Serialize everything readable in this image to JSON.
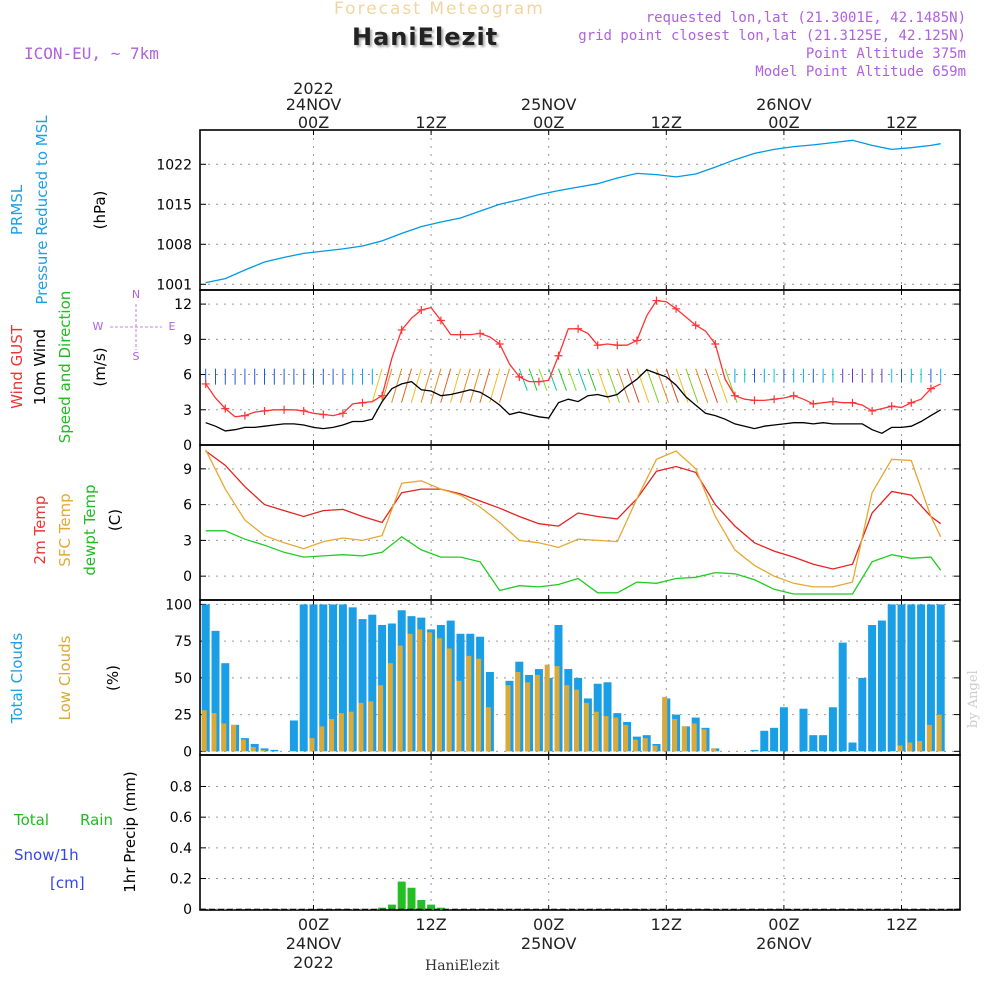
{
  "header": {
    "product": "Forecast Meteogram",
    "station": "HaniElezit",
    "model": "ICON-EU, ~ 7km",
    "requested": "requested lon,lat (21.3001E, 42.1485N)",
    "gridpoint": "grid point closest lon,lat (21.3125E, 42.125N)",
    "point_altitude": "Point Altitude 375m",
    "model_altitude": "Model Point Altitude 659m"
  },
  "footer": {
    "station": "HaniElezit",
    "watermark": "by Angel"
  },
  "time_axis": {
    "top_year": "2022",
    "labels": [
      {
        "h": 0,
        "lines": [
          "24NOV",
          "00Z"
        ]
      },
      {
        "h": 12,
        "lines": [
          "12Z"
        ]
      },
      {
        "h": 24,
        "lines": [
          "25NOV",
          "00Z"
        ]
      },
      {
        "h": 36,
        "lines": [
          "12Z"
        ]
      },
      {
        "h": 48,
        "lines": [
          "26NOV",
          "00Z"
        ]
      },
      {
        "h": 60,
        "lines": [
          "12Z"
        ]
      }
    ],
    "bottom_labels": [
      {
        "h": 0,
        "lines": [
          "00Z",
          "24NOV",
          "2022"
        ]
      },
      {
        "h": 12,
        "lines": [
          "12Z"
        ]
      },
      {
        "h": 24,
        "lines": [
          "00Z",
          "25NOV"
        ]
      },
      {
        "h": 36,
        "lines": [
          "12Z"
        ]
      },
      {
        "h": 48,
        "lines": [
          "00Z",
          "26NOV"
        ]
      },
      {
        "h": 60,
        "lines": [
          "12Z"
        ]
      }
    ]
  },
  "chart_data": [
    {
      "type": "line",
      "panel": "pressure",
      "labels": [
        "PRMSL",
        "Pressure Reduced to MSL",
        "(hPa)"
      ],
      "ylim": [
        1000,
        1028
      ],
      "yticks": [
        1001,
        1008,
        1015,
        1022
      ],
      "grid": true,
      "x": [
        -11,
        -9,
        -7,
        -5,
        -3,
        -1,
        1,
        3,
        5,
        7,
        9,
        11,
        13,
        15,
        17,
        19,
        21,
        23,
        25,
        27,
        29,
        31,
        33,
        35,
        37,
        39,
        41,
        43,
        45,
        47,
        49,
        51,
        53,
        55,
        57,
        59,
        61,
        63,
        64
      ],
      "series": [
        {
          "color": "#0099e6",
          "values": [
            1001.3,
            1002.0,
            1003.5,
            1004.9,
            1005.7,
            1006.4,
            1006.8,
            1007.2,
            1007.7,
            1008.6,
            1009.9,
            1011.1,
            1011.9,
            1012.6,
            1013.8,
            1015.0,
            1015.8,
            1016.7,
            1017.4,
            1018.0,
            1018.6,
            1019.6,
            1020.4,
            1020.2,
            1019.8,
            1020.3,
            1021.5,
            1022.8,
            1023.9,
            1024.6,
            1025.1,
            1025.4,
            1025.8,
            1026.2,
            1025.3,
            1024.6,
            1024.9,
            1025.3,
            1025.6
          ]
        }
      ]
    },
    {
      "type": "line",
      "panel": "wind",
      "labels": [
        "Wind GUST",
        "10m Wind",
        "Speed and Direction",
        "(m/s)"
      ],
      "compass": [
        "N",
        "E",
        "S",
        "W"
      ],
      "ylim": [
        0,
        13.2
      ],
      "yticks": [
        0,
        3,
        6,
        9,
        12
      ],
      "grid": true,
      "x": [
        -11,
        -10,
        -9,
        -8,
        -7,
        -6,
        -5,
        -4,
        -3,
        -2,
        -1,
        0,
        1,
        2,
        3,
        4,
        5,
        6,
        7,
        8,
        9,
        10,
        11,
        12,
        13,
        14,
        15,
        16,
        17,
        18,
        19,
        20,
        21,
        22,
        23,
        24,
        25,
        26,
        27,
        28,
        29,
        30,
        31,
        32,
        33,
        34,
        35,
        36,
        37,
        38,
        39,
        40,
        41,
        42,
        43,
        44,
        45,
        46,
        47,
        48,
        49,
        50,
        51,
        52,
        53,
        54,
        55,
        56,
        57,
        58,
        59,
        60,
        61,
        62,
        63,
        64
      ],
      "series": [
        {
          "name": "Wind GUST",
          "color": "#ff3333",
          "values": [
            5.2,
            4.0,
            3.1,
            2.4,
            2.5,
            2.8,
            2.9,
            3.0,
            3.0,
            3.0,
            2.9,
            2.7,
            2.6,
            2.5,
            2.7,
            3.5,
            3.6,
            3.7,
            4.2,
            7.4,
            9.8,
            10.8,
            11.5,
            11.7,
            10.6,
            9.4,
            9.4,
            9.4,
            9.5,
            9.2,
            8.6,
            6.9,
            5.8,
            5.4,
            5.4,
            5.5,
            7.6,
            9.9,
            9.9,
            9.5,
            8.5,
            8.6,
            8.5,
            8.5,
            8.9,
            11.0,
            12.3,
            12.2,
            11.6,
            10.9,
            10.2,
            9.7,
            8.6,
            5.6,
            4.2,
            3.9,
            3.8,
            3.8,
            3.9,
            4.0,
            4.2,
            3.9,
            3.5,
            3.6,
            3.7,
            3.6,
            3.6,
            3.4,
            2.9,
            3.1,
            3.3,
            3.2,
            3.6,
            3.9,
            4.8,
            5.2
          ]
        },
        {
          "name": "10m Wind",
          "color": "#000000",
          "values": [
            1.9,
            1.6,
            1.2,
            1.3,
            1.5,
            1.5,
            1.6,
            1.7,
            1.8,
            1.8,
            1.7,
            1.5,
            1.4,
            1.5,
            1.7,
            2.0,
            2.0,
            2.2,
            3.7,
            4.8,
            5.2,
            5.4,
            4.7,
            4.6,
            4.2,
            4.3,
            4.5,
            4.7,
            4.5,
            4.0,
            3.4,
            2.6,
            2.8,
            2.6,
            2.4,
            2.3,
            3.6,
            3.9,
            3.7,
            4.2,
            4.3,
            4.1,
            4.3,
            5.0,
            5.6,
            6.4,
            6.1,
            5.8,
            5.1,
            4.1,
            3.4,
            2.7,
            2.5,
            2.2,
            1.8,
            1.6,
            1.4,
            1.6,
            1.7,
            1.8,
            1.9,
            1.9,
            1.8,
            1.9,
            1.8,
            1.8,
            1.8,
            1.8,
            1.3,
            1.0,
            1.5,
            1.5,
            1.6,
            2.0,
            2.5,
            3.0
          ]
        }
      ]
    },
    {
      "type": "line",
      "panel": "temperature",
      "labels": [
        "2m Temp",
        "SFC Temp",
        "dewpt Temp",
        "(C)"
      ],
      "ylim": [
        -2,
        11
      ],
      "yticks": [
        0,
        3,
        6,
        9
      ],
      "grid": true,
      "x": [
        -11,
        -9,
        -7,
        -5,
        -3,
        -1,
        1,
        3,
        5,
        7,
        9,
        11,
        13,
        15,
        17,
        19,
        21,
        23,
        25,
        27,
        29,
        31,
        33,
        35,
        37,
        39,
        41,
        43,
        45,
        47,
        49,
        51,
        53,
        55,
        57,
        59,
        61,
        63,
        64
      ],
      "series": [
        {
          "name": "2m Temp",
          "color": "#e62222",
          "values": [
            10.5,
            9.3,
            7.5,
            6.0,
            5.5,
            5.0,
            5.5,
            5.6,
            5.0,
            4.5,
            7.0,
            7.3,
            7.3,
            6.9,
            6.3,
            5.7,
            5.0,
            4.4,
            4.2,
            5.3,
            5.0,
            4.8,
            6.5,
            8.8,
            9.2,
            8.7,
            6.0,
            4.2,
            2.8,
            2.1,
            1.6,
            1.0,
            0.6,
            1.0,
            5.3,
            7.1,
            6.8,
            5.0,
            4.4
          ]
        },
        {
          "name": "SFC Temp",
          "color": "#e6a830",
          "values": [
            10.6,
            7.3,
            4.7,
            3.4,
            2.8,
            2.3,
            2.9,
            3.2,
            3.0,
            3.4,
            7.8,
            8.0,
            7.3,
            6.8,
            5.8,
            4.5,
            3.0,
            2.8,
            2.4,
            3.1,
            3.0,
            2.9,
            6.5,
            9.8,
            10.5,
            9.0,
            5.0,
            2.2,
            0.9,
            0.0,
            -0.6,
            -0.9,
            -0.9,
            -0.5,
            7.0,
            9.8,
            9.7,
            5.0,
            3.3
          ]
        },
        {
          "name": "dewpt Temp",
          "color": "#22cc22",
          "values": [
            3.8,
            3.8,
            3.1,
            2.6,
            2.0,
            1.6,
            1.7,
            1.8,
            1.7,
            2.0,
            3.3,
            2.2,
            1.6,
            1.6,
            1.2,
            -1.2,
            -0.8,
            -0.9,
            -0.7,
            -0.2,
            -1.4,
            -1.4,
            -0.5,
            -0.6,
            -0.2,
            -0.1,
            0.3,
            0.2,
            -0.3,
            -1.1,
            -1.5,
            -1.5,
            -1.5,
            -1.5,
            1.2,
            1.8,
            1.5,
            1.6,
            0.5
          ]
        }
      ]
    },
    {
      "type": "bar",
      "panel": "clouds",
      "labels": [
        "Total Clouds",
        "Low Clouds",
        "(%)"
      ],
      "ylim": [
        0,
        100
      ],
      "yticks": [
        0,
        25,
        50,
        75,
        100
      ],
      "grid": true,
      "x": [
        -11,
        -10,
        -9,
        -8,
        -7,
        -6,
        -5,
        -4,
        -3,
        -2,
        -1,
        0,
        1,
        2,
        3,
        4,
        5,
        6,
        7,
        8,
        9,
        10,
        11,
        12,
        13,
        14,
        15,
        16,
        17,
        18,
        19,
        20,
        21,
        22,
        23,
        24,
        25,
        26,
        27,
        28,
        29,
        30,
        31,
        32,
        33,
        34,
        35,
        36,
        37,
        38,
        39,
        40,
        41,
        42,
        43,
        44,
        45,
        46,
        47,
        48,
        49,
        50,
        51,
        52,
        53,
        54,
        55,
        56,
        57,
        58,
        59,
        60,
        61,
        62,
        63,
        64
      ],
      "series": [
        {
          "name": "Total Clouds",
          "color": "#1a9ee6",
          "values": [
            100,
            82,
            60,
            18,
            9,
            5,
            2,
            1,
            0,
            21,
            100,
            100,
            100,
            100,
            100,
            98,
            90,
            93,
            86,
            87,
            96,
            92,
            91,
            83,
            86,
            89,
            80,
            80,
            78,
            54,
            0,
            48,
            61,
            52,
            56,
            50,
            86,
            56,
            50,
            36,
            46,
            47,
            26,
            20,
            10,
            11,
            5,
            36,
            25,
            17,
            23,
            16,
            2,
            0,
            0,
            0,
            1,
            14,
            16,
            30,
            0,
            29,
            11,
            11,
            30,
            74,
            6,
            50,
            86,
            89,
            100,
            100,
            100,
            100,
            100,
            100
          ]
        },
        {
          "name": "Low Clouds",
          "color": "#d9a93a",
          "values": [
            28,
            26,
            19,
            18,
            8,
            3,
            1,
            0,
            0,
            0,
            0,
            9,
            17,
            22,
            26,
            27,
            33,
            34,
            45,
            60,
            72,
            80,
            83,
            81,
            77,
            70,
            48,
            65,
            63,
            30,
            0,
            45,
            54,
            47,
            52,
            59,
            58,
            45,
            42,
            33,
            27,
            24,
            23,
            18,
            8,
            9,
            4,
            37,
            22,
            17,
            19,
            15,
            2,
            0,
            0,
            0,
            0,
            0,
            0,
            0,
            0,
            0,
            0,
            0,
            0,
            0,
            0,
            0,
            0,
            0,
            0,
            4,
            6,
            7,
            18,
            25
          ]
        }
      ]
    },
    {
      "type": "bar",
      "panel": "precipitation",
      "labels": [
        "Total",
        "Rain",
        "Snow/1h",
        "[cm]",
        "1hr Precip (mm)"
      ],
      "ylim": [
        0,
        1
      ],
      "yticks": [
        0,
        0.2,
        0.4,
        0.6,
        0.8
      ],
      "grid": true,
      "x": [
        6,
        7,
        8,
        9,
        10,
        11,
        12,
        13,
        14
      ],
      "series": [
        {
          "name": "Rain",
          "color": "#22c022",
          "values": [
            0.0,
            0.01,
            0.03,
            0.18,
            0.14,
            0.06,
            0.03,
            0.01,
            0.0
          ]
        }
      ]
    }
  ]
}
